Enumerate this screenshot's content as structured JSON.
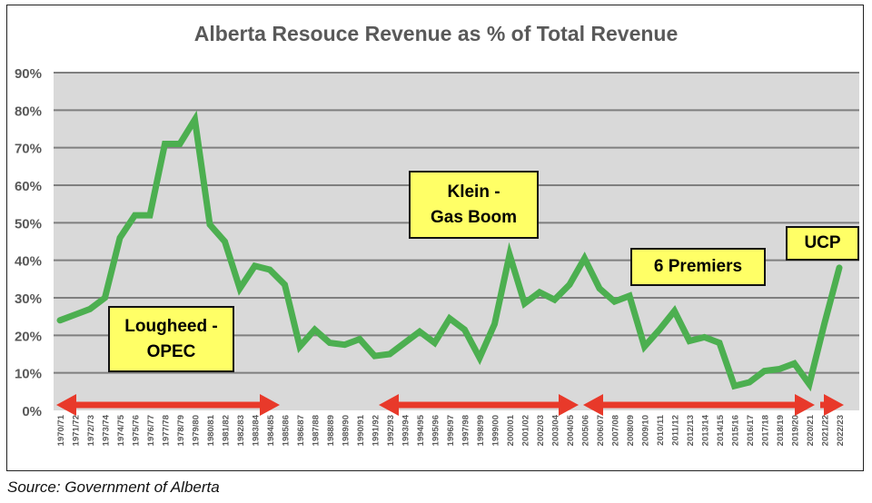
{
  "chart_data": {
    "type": "line",
    "title": "Alberta Resouce Revenue as % of Total Revenue",
    "xlabel": "",
    "ylabel": "",
    "ylim": [
      0,
      90
    ],
    "yticks": [
      "0%",
      "10%",
      "20%",
      "30%",
      "40%",
      "50%",
      "60%",
      "70%",
      "80%",
      "90%"
    ],
    "grid": true,
    "line_color": "#4caf50",
    "x": [
      "1970/71",
      "1971/72",
      "1972/73",
      "1973/74",
      "1974/75",
      "1975/76",
      "1976/77",
      "1977/78",
      "1978/79",
      "1979/80",
      "1980/81",
      "1981/82",
      "1982/83",
      "1983/84",
      "1984/85",
      "1985/86",
      "1986/87",
      "1987/88",
      "1988/89",
      "1989/90",
      "1990/91",
      "1991/92",
      "1992/93",
      "1993/94",
      "1994/95",
      "1995/96",
      "1996/97",
      "1997/98",
      "1998/99",
      "1999/00",
      "2000/01",
      "2001/02",
      "2002/03",
      "2003/04",
      "2004/05",
      "2005/06",
      "2006/07",
      "2007/08",
      "2008/09",
      "2009/10",
      "2010/11",
      "2011/12",
      "2012/13",
      "2013/14",
      "2014/15",
      "2015/16",
      "2016/17",
      "2017/18",
      "2018/19",
      "2019/20",
      "2020/21",
      "2021/22",
      "2022/23"
    ],
    "values": [
      24,
      25.5,
      27,
      30,
      46,
      52,
      52,
      71,
      71,
      77.5,
      49.5,
      45,
      32.5,
      38.5,
      37.5,
      33.5,
      17,
      21.5,
      18,
      17.5,
      19,
      14.5,
      15,
      18,
      21,
      18,
      24.5,
      21.5,
      14,
      23,
      41.5,
      28.5,
      31.5,
      29.5,
      33.5,
      40.5,
      32.5,
      29,
      30.5,
      17,
      21.5,
      26.5,
      18.5,
      19.5,
      18,
      6.5,
      7.5,
      10.5,
      11,
      12.5,
      7,
      23,
      38
    ],
    "annotations": [
      {
        "text_line1": "Lougheed -",
        "text_line2": "OPEC",
        "period": [
          "1970/71",
          "1985/86"
        ]
      },
      {
        "text_line1": "Klein -",
        "text_line2": "Gas Boom",
        "period": [
          "1992/93",
          "2005/06"
        ]
      },
      {
        "text_line1": "6 Premiers",
        "text_line2": "",
        "period": [
          "2005/06",
          "2020/21"
        ]
      },
      {
        "text_line1": "UCP",
        "text_line2": "",
        "period": [
          "2021/22",
          "2022/23"
        ]
      }
    ],
    "arrow_color": "#e8392a",
    "annotation_fill": "#ffff66"
  },
  "source": "Source: Government of Alberta"
}
